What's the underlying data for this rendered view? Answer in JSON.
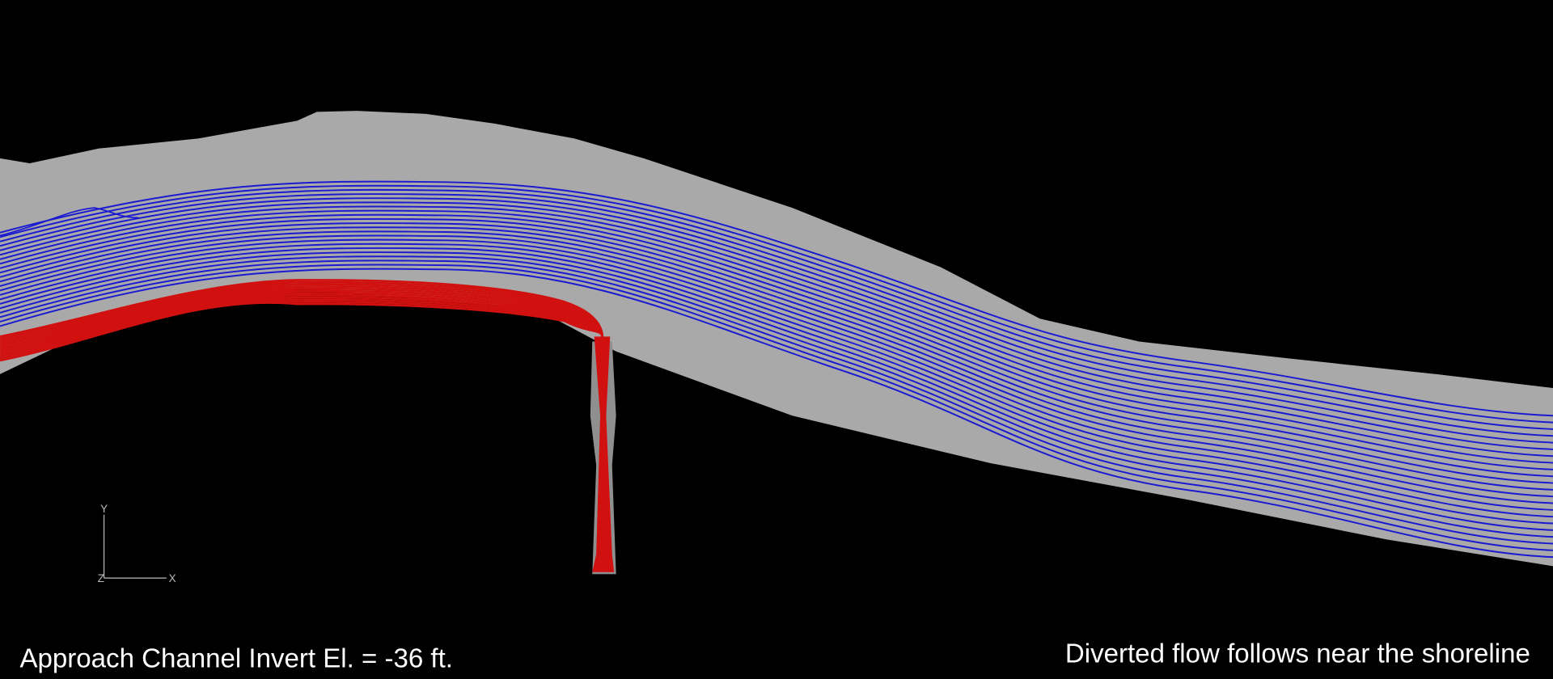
{
  "axes": {
    "y": "Y",
    "z": "Z",
    "x": "X"
  },
  "captions": {
    "left": "Approach Channel Invert El. = -36 ft.",
    "right": "Diverted flow follows near the shoreline"
  }
}
